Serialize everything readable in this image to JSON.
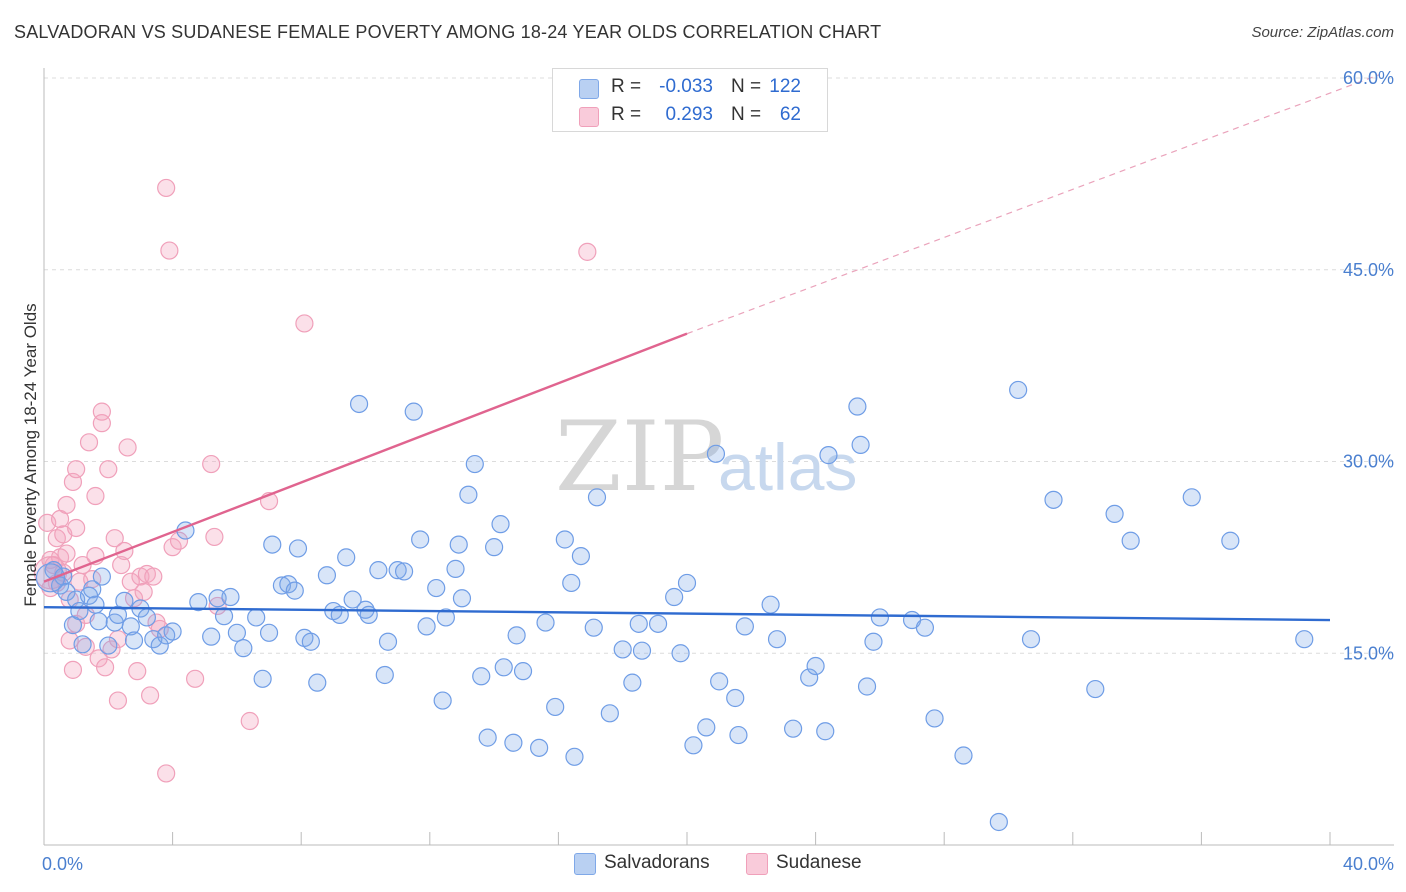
{
  "title": "SALVADORAN VS SUDANESE FEMALE POVERTY AMONG 18-24 YEAR OLDS CORRELATION CHART",
  "source": "Source: ZipAtlas.com",
  "watermark": {
    "zip": "ZIP",
    "atlas": "atlas"
  },
  "legend": {
    "rows": [
      {
        "r_label": "R =",
        "r_value": "-0.033",
        "n_label": "N =",
        "n_value": "122"
      },
      {
        "r_label": "R =",
        "r_value": "0.293",
        "n_label": "N =",
        "n_value": "62"
      }
    ]
  },
  "bottom_legend": {
    "salvadorans": "Salvadorans",
    "sudanese": "Sudanese"
  },
  "chart_data": {
    "type": "scatter",
    "title": "SALVADORAN VS SUDANESE FEMALE POVERTY AMONG 18-24 YEAR OLDS CORRELATION CHART",
    "xlabel": "",
    "ylabel": "Female Poverty Among 18-24 Year Olds",
    "xlim": [
      0,
      40
    ],
    "ylim": [
      0,
      60
    ],
    "x_tick_labels": [
      "0.0%",
      "40.0%"
    ],
    "y_ticks": [
      15,
      30,
      45,
      60
    ],
    "y_tick_labels": [
      "15.0%",
      "30.0%",
      "45.0%",
      "60.0%"
    ],
    "grid": true,
    "legend_position": "top-center",
    "colors": {
      "salvadorans": "#7fa8e8",
      "sudanese": "#f4a6c0",
      "blue_line": "#2f6bd0",
      "pink_line": "#e0648f"
    },
    "series": [
      {
        "name": "Salvadorans",
        "R": -0.033,
        "N": 122,
        "trend": {
          "x0": 0,
          "y0": 18.6,
          "x1": 40,
          "y1": 17.6
        },
        "points": [
          [
            0.3,
            21.5
          ],
          [
            0.5,
            20.3
          ],
          [
            0.6,
            21.0
          ],
          [
            0.7,
            19.8
          ],
          [
            0.9,
            17.2
          ],
          [
            1.0,
            19.2
          ],
          [
            1.1,
            18.3
          ],
          [
            1.2,
            15.7
          ],
          [
            1.4,
            19.5
          ],
          [
            1.5,
            20.0
          ],
          [
            1.6,
            18.8
          ],
          [
            1.7,
            17.5
          ],
          [
            1.8,
            21.0
          ],
          [
            2.0,
            15.6
          ],
          [
            2.2,
            17.4
          ],
          [
            2.3,
            18.0
          ],
          [
            2.5,
            19.1
          ],
          [
            2.7,
            17.1
          ],
          [
            2.8,
            16.0
          ],
          [
            3.0,
            18.5
          ],
          [
            3.2,
            17.8
          ],
          [
            3.4,
            16.1
          ],
          [
            3.6,
            15.6
          ],
          [
            3.8,
            16.4
          ],
          [
            4.0,
            16.7
          ],
          [
            4.4,
            24.6
          ],
          [
            4.8,
            19.0
          ],
          [
            5.2,
            16.3
          ],
          [
            5.4,
            19.3
          ],
          [
            5.6,
            17.9
          ],
          [
            5.8,
            19.4
          ],
          [
            6.0,
            16.6
          ],
          [
            6.2,
            15.4
          ],
          [
            6.6,
            17.8
          ],
          [
            6.8,
            13.0
          ],
          [
            7.0,
            16.6
          ],
          [
            7.1,
            23.5
          ],
          [
            7.4,
            20.3
          ],
          [
            7.6,
            20.4
          ],
          [
            7.8,
            19.9
          ],
          [
            7.9,
            23.2
          ],
          [
            8.1,
            16.2
          ],
          [
            8.3,
            15.9
          ],
          [
            8.5,
            12.7
          ],
          [
            8.8,
            21.1
          ],
          [
            9.0,
            18.3
          ],
          [
            9.2,
            18.0
          ],
          [
            9.4,
            22.5
          ],
          [
            9.6,
            19.2
          ],
          [
            9.8,
            34.5
          ],
          [
            10.0,
            18.4
          ],
          [
            10.1,
            18.0
          ],
          [
            10.4,
            21.5
          ],
          [
            10.6,
            13.3
          ],
          [
            10.7,
            15.9
          ],
          [
            11.0,
            21.5
          ],
          [
            11.2,
            21.4
          ],
          [
            11.5,
            33.9
          ],
          [
            11.7,
            23.9
          ],
          [
            11.9,
            17.1
          ],
          [
            12.2,
            20.1
          ],
          [
            12.4,
            11.3
          ],
          [
            12.5,
            17.8
          ],
          [
            12.8,
            21.6
          ],
          [
            12.9,
            23.5
          ],
          [
            13.0,
            19.3
          ],
          [
            13.2,
            27.4
          ],
          [
            13.4,
            29.8
          ],
          [
            13.6,
            13.2
          ],
          [
            13.8,
            8.4
          ],
          [
            14.0,
            23.3
          ],
          [
            14.2,
            25.1
          ],
          [
            14.3,
            13.9
          ],
          [
            14.6,
            8.0
          ],
          [
            14.7,
            16.4
          ],
          [
            14.9,
            13.6
          ],
          [
            15.4,
            7.6
          ],
          [
            15.6,
            17.4
          ],
          [
            15.9,
            10.8
          ],
          [
            16.2,
            23.9
          ],
          [
            16.4,
            20.5
          ],
          [
            16.5,
            6.9
          ],
          [
            16.7,
            22.6
          ],
          [
            17.1,
            17.0
          ],
          [
            17.2,
            27.2
          ],
          [
            17.6,
            10.3
          ],
          [
            18.0,
            15.3
          ],
          [
            18.3,
            12.7
          ],
          [
            18.6,
            15.2
          ],
          [
            18.5,
            17.3
          ],
          [
            19.1,
            17.3
          ],
          [
            19.6,
            19.4
          ],
          [
            19.8,
            15.0
          ],
          [
            20.0,
            20.5
          ],
          [
            20.2,
            7.8
          ],
          [
            20.6,
            9.2
          ],
          [
            20.9,
            30.6
          ],
          [
            21.0,
            12.8
          ],
          [
            21.5,
            11.5
          ],
          [
            21.6,
            8.6
          ],
          [
            21.8,
            17.1
          ],
          [
            22.6,
            18.8
          ],
          [
            22.8,
            16.1
          ],
          [
            23.3,
            9.1
          ],
          [
            23.8,
            13.1
          ],
          [
            24.0,
            14.0
          ],
          [
            24.3,
            8.9
          ],
          [
            24.4,
            30.5
          ],
          [
            25.3,
            34.3
          ],
          [
            25.4,
            31.3
          ],
          [
            25.6,
            12.4
          ],
          [
            25.8,
            15.9
          ],
          [
            26.0,
            17.8
          ],
          [
            27.0,
            17.6
          ],
          [
            27.4,
            17.0
          ],
          [
            27.7,
            9.9
          ],
          [
            28.6,
            7.0
          ],
          [
            29.7,
            1.8
          ],
          [
            30.3,
            35.6
          ],
          [
            30.7,
            16.1
          ],
          [
            31.4,
            27.0
          ],
          [
            32.7,
            12.2
          ],
          [
            33.3,
            25.9
          ],
          [
            33.8,
            23.8
          ],
          [
            35.7,
            27.2
          ],
          [
            36.9,
            23.8
          ],
          [
            39.2,
            16.1
          ]
        ]
      },
      {
        "name": "Sudanese",
        "R": 0.293,
        "N": 62,
        "trend": {
          "x0": 0,
          "y0": 20.6,
          "x1": 20,
          "y1": 40.0
        },
        "trend_dashed": {
          "x0": 20,
          "y0": 40.0,
          "x1": 40,
          "y1": 59.5
        },
        "points": [
          [
            0.1,
            25.2
          ],
          [
            0.2,
            22.3
          ],
          [
            0.2,
            20.1
          ],
          [
            0.3,
            21.9
          ],
          [
            0.4,
            20.5
          ],
          [
            0.4,
            24.0
          ],
          [
            0.5,
            25.5
          ],
          [
            0.5,
            22.5
          ],
          [
            0.6,
            21.3
          ],
          [
            0.6,
            24.3
          ],
          [
            0.7,
            22.8
          ],
          [
            0.7,
            26.6
          ],
          [
            0.8,
            19.2
          ],
          [
            0.8,
            16.0
          ],
          [
            0.9,
            13.7
          ],
          [
            0.9,
            28.4
          ],
          [
            1.0,
            29.4
          ],
          [
            1.0,
            24.8
          ],
          [
            1.0,
            17.3
          ],
          [
            1.1,
            20.6
          ],
          [
            1.2,
            21.9
          ],
          [
            1.3,
            18.0
          ],
          [
            1.3,
            15.5
          ],
          [
            1.4,
            31.5
          ],
          [
            1.5,
            20.8
          ],
          [
            1.6,
            22.6
          ],
          [
            1.6,
            27.3
          ],
          [
            1.7,
            14.6
          ],
          [
            1.8,
            33.0
          ],
          [
            1.8,
            33.9
          ],
          [
            1.9,
            13.9
          ],
          [
            2.0,
            29.4
          ],
          [
            2.1,
            15.3
          ],
          [
            2.2,
            24.0
          ],
          [
            2.3,
            11.3
          ],
          [
            2.3,
            16.1
          ],
          [
            2.4,
            21.9
          ],
          [
            2.5,
            23.0
          ],
          [
            2.6,
            31.1
          ],
          [
            2.7,
            20.6
          ],
          [
            2.8,
            19.3
          ],
          [
            2.9,
            13.6
          ],
          [
            3.0,
            21.0
          ],
          [
            3.1,
            19.8
          ],
          [
            3.2,
            21.2
          ],
          [
            3.3,
            11.7
          ],
          [
            3.4,
            21.0
          ],
          [
            3.5,
            17.4
          ],
          [
            3.6,
            16.9
          ],
          [
            3.8,
            5.6
          ],
          [
            3.8,
            51.4
          ],
          [
            3.9,
            46.5
          ],
          [
            4.0,
            23.3
          ],
          [
            4.2,
            23.8
          ],
          [
            4.7,
            13.0
          ],
          [
            5.2,
            29.8
          ],
          [
            5.3,
            24.1
          ],
          [
            5.4,
            18.7
          ],
          [
            6.4,
            9.7
          ],
          [
            7.0,
            26.9
          ],
          [
            8.1,
            40.8
          ],
          [
            16.9,
            46.4
          ]
        ]
      }
    ]
  }
}
